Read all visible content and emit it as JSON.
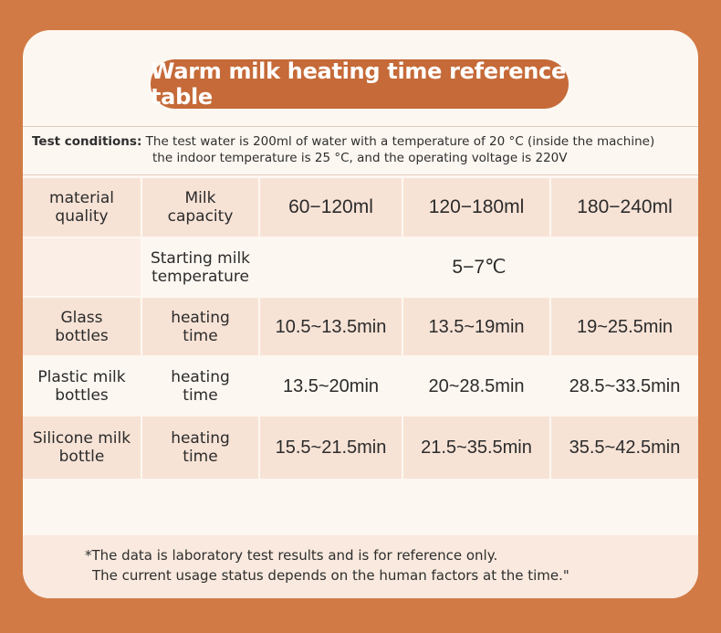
{
  "title": "Warm milk heating time reference table",
  "conditions": {
    "label": "Test conditions:",
    "line1": "The test water is 200ml of water with a temperature of 20 °C (inside the machine)",
    "line2": "the indoor temperature is 25 °C, and the operating voltage is 220V"
  },
  "table": {
    "header": {
      "material": [
        "material",
        "quality"
      ],
      "capacity": [
        "Milk",
        "capacity"
      ],
      "columns": [
        "60−120ml",
        "120−180ml",
        "180−240ml"
      ]
    },
    "start_row": {
      "label": [
        "Starting milk",
        "temperature"
      ],
      "value": "5−7℃"
    },
    "rows": [
      {
        "material": [
          "Glass",
          "bottles"
        ],
        "type": [
          "heating",
          "time"
        ],
        "values": [
          "10.5~13.5min",
          "13.5~19min",
          "19~25.5min"
        ]
      },
      {
        "material": [
          "Plastic milk",
          "bottles"
        ],
        "type": [
          "heating",
          "time"
        ],
        "values": [
          "13.5~20min",
          "20~28.5min",
          "28.5~33.5min"
        ]
      },
      {
        "material": [
          "Silicone milk",
          "bottle"
        ],
        "type": [
          "heating",
          "time"
        ],
        "values": [
          "15.5~21.5min",
          "21.5~35.5min",
          "35.5~42.5min"
        ]
      }
    ]
  },
  "note": {
    "line1": "*The data is laboratory test results and is for reference only.",
    "line2": "The current usage status depends on the human factors at the time.\""
  },
  "colors": {
    "background": "#d27a45",
    "card": "#fdf7f1",
    "title_pill": "#c56a38",
    "cell_dark": "#f7e3d6"
  }
}
